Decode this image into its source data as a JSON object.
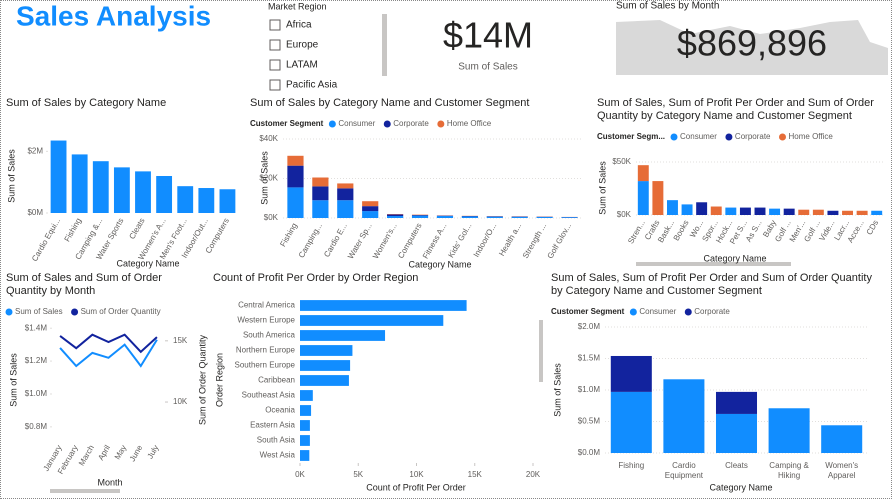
{
  "header": {
    "title": "Sales Analysis"
  },
  "slicer": {
    "title": "Market Region",
    "options": [
      "Africa",
      "Europe",
      "LATAM",
      "Pacific Asia"
    ]
  },
  "cards": [
    {
      "value": "$14M",
      "label": "Sum of Sales"
    },
    {
      "title": "Sum of Sales by Month",
      "value": "$869,896"
    }
  ],
  "chart_data": [
    {
      "type": "bar",
      "title": "Sum of Sales by Category Name",
      "categories": [
        "Cardio Equi...",
        "Fishing",
        "Camping &...",
        "Water Sports",
        "Cleats",
        "Women's A...",
        "Men's Foot...",
        "Indoor/Out...",
        "Computers"
      ],
      "values": [
        2350000,
        1900000,
        1680000,
        1480000,
        1350000,
        1200000,
        870000,
        810000,
        770000
      ],
      "color": "#118DFF",
      "ylim": [
        0,
        2400000
      ],
      "yticks": [
        {
          "value": 0,
          "label": "$0M"
        },
        {
          "value": 2000000,
          "label": "$2M"
        }
      ],
      "y_label": "Sum of Sales",
      "x_label": "Category Name",
      "grid": false
    },
    {
      "type": "stacked_bar",
      "title": "Sum of Sales by Category Name and Customer Segment",
      "legend_title": "Customer Segment",
      "categories": [
        "Fishing",
        "Camping...",
        "Cardio E...",
        "Water Sp...",
        "Women's...",
        "Computers",
        "Fitness A...",
        "Kids' Gol...",
        "Indoor/O...",
        "Health a...",
        "Strength ...",
        "Golf Glov..."
      ],
      "series": [
        {
          "name": "Consumer",
          "color": "#118DFF",
          "values": [
            15500,
            9000,
            9000,
            3500,
            1000,
            1200,
            1000,
            800,
            700,
            600,
            500,
            400
          ]
        },
        {
          "name": "Corporate",
          "color": "#12239E",
          "values": [
            11000,
            7000,
            6000,
            2500,
            800,
            300,
            200,
            200,
            200,
            150,
            150,
            100
          ]
        },
        {
          "name": "Home Office",
          "color": "#E66C37",
          "values": [
            5000,
            4500,
            2500,
            2500,
            200,
            200,
            100,
            100,
            100,
            100,
            100,
            50
          ]
        }
      ],
      "ylim": [
        0,
        40000
      ],
      "yticks": [
        {
          "value": 0,
          "label": "$0K"
        },
        {
          "value": 20000,
          "label": "$20K"
        },
        {
          "value": 40000,
          "label": "$40K"
        }
      ],
      "y_label": "Sum of Sales",
      "x_label": "Category Name",
      "grid": true
    },
    {
      "type": "stacked_bar",
      "title": "Sum of Sales, Sum of Profit Per Order and Sum of Order Quantity by Category Name and Customer Segment",
      "legend_title": "Customer Segm...",
      "categories": [
        "Stren...",
        "Crafts",
        "Bask...",
        "Books",
        "Wo...",
        "Spor...",
        "Hock...",
        "Pet S...",
        "As S...",
        "Baby",
        "Golf ...",
        "Men'...",
        "Golf ...",
        "Vide...",
        "Lacr...",
        "Acce...",
        "CDs"
      ],
      "series": [
        {
          "name": "Consumer",
          "color": "#118DFF",
          "values": [
            32000,
            0,
            14000,
            10000,
            0,
            0,
            7000,
            0,
            0,
            6000,
            0,
            0,
            0,
            0,
            0,
            0,
            4000
          ]
        },
        {
          "name": "Corporate",
          "color": "#12239E",
          "values": [
            0,
            0,
            0,
            0,
            12000,
            0,
            0,
            7000,
            7000,
            0,
            6000,
            0,
            0,
            4000,
            0,
            0,
            0
          ]
        },
        {
          "name": "Home Office",
          "color": "#E66C37",
          "values": [
            15000,
            32000,
            0,
            0,
            0,
            8000,
            0,
            0,
            0,
            0,
            0,
            5000,
            5000,
            0,
            4000,
            4000,
            0
          ]
        }
      ],
      "ylim": [
        0,
        50000
      ],
      "yticks": [
        {
          "value": 0,
          "label": "$0K"
        },
        {
          "value": 50000,
          "label": "$50K"
        }
      ],
      "y_label": "Sum of Sales",
      "x_label": "Category Name",
      "grid": true
    },
    {
      "type": "line",
      "title": "Sum of Sales and Sum of Order Quantity by Month",
      "categories": [
        "January",
        "February",
        "March",
        "April",
        "May",
        "June",
        "July"
      ],
      "series": [
        {
          "name": "Sum of Sales",
          "color": "#118DFF",
          "values": [
            1280000,
            1170000,
            1250000,
            1220000,
            1300000,
            1170000,
            1330000
          ]
        },
        {
          "name": "Sum of Order Quantity",
          "color": "#12239E",
          "axis": "y2",
          "values": [
            15400,
            14400,
            15500,
            14900,
            15500,
            14100,
            15300
          ]
        }
      ],
      "ylim": [
        720000,
        1450000
      ],
      "yticks": [
        {
          "value": 800000,
          "label": "$0.8M"
        },
        {
          "value": 1000000,
          "label": "$1.0M"
        },
        {
          "value": 1200000,
          "label": "$1.2M"
        },
        {
          "value": 1400000,
          "label": "$1.4M"
        }
      ],
      "y2lim": [
        6900,
        16700
      ],
      "y2ticks": [
        {
          "value": 10000,
          "label": "10K"
        },
        {
          "value": 15000,
          "label": "15K"
        }
      ],
      "y_label": "Sum of Sales",
      "y2_label": "Sum of Order Quantity",
      "x_label": "Month"
    },
    {
      "type": "bar",
      "orientation": "horizontal",
      "title": "Count of Profit Per Order by Order Region",
      "categories": [
        "Central America",
        "Western Europe",
        "South America",
        "Northern Europe",
        "Southern Europe",
        "Caribbean",
        "Southeast Asia",
        "Oceania",
        "Eastern Asia",
        "South Asia",
        "West Asia"
      ],
      "values": [
        14300,
        12300,
        7300,
        4500,
        4300,
        4200,
        1100,
        950,
        850,
        850,
        800
      ],
      "color": "#118DFF",
      "xlim": [
        0,
        20000
      ],
      "xticks": [
        {
          "value": 0,
          "label": "0K"
        },
        {
          "value": 5000,
          "label": "5K"
        },
        {
          "value": 10000,
          "label": "10K"
        },
        {
          "value": 15000,
          "label": "15K"
        },
        {
          "value": 20000,
          "label": "20K"
        }
      ],
      "y_label": "Order Region",
      "x_label": "Count of Profit Per Order"
    },
    {
      "type": "stacked_bar",
      "title": "Sum of Sales, Sum of Profit Per Order and Sum of Order Quantity by Category Name and Customer Segment",
      "legend_title": "Customer Segment",
      "categories": [
        "Fishing",
        "Cardio Equipment",
        "Cleats",
        "Camping & Hiking",
        "Women's Apparel"
      ],
      "series": [
        {
          "name": "Consumer",
          "color": "#118DFF",
          "values": [
            970000,
            1170000,
            620000,
            710000,
            440000
          ]
        },
        {
          "name": "Corporate",
          "color": "#12239E",
          "values": [
            570000,
            null,
            350000,
            null,
            null
          ]
        }
      ],
      "ylim": [
        0,
        2000000
      ],
      "yticks": [
        {
          "value": 0,
          "label": "$0.0M"
        },
        {
          "value": 500000,
          "label": "$0.5M"
        },
        {
          "value": 1000000,
          "label": "$1.0M"
        },
        {
          "value": 1500000,
          "label": "$1.5M"
        },
        {
          "value": 2000000,
          "label": "$2.0M"
        }
      ],
      "y_label": "Sum of Sales",
      "x_label": "Category Name",
      "grid": true
    }
  ]
}
